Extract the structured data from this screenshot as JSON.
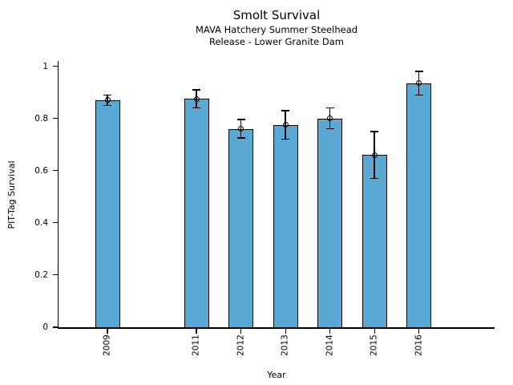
{
  "chart_data": {
    "type": "bar",
    "title": "Smolt Survival",
    "subtitle_lines": [
      "MAVA Hatchery Summer Steelhead",
      "Release - Lower Granite Dam"
    ],
    "xlabel": "Year",
    "ylabel": "PIT-Tag Survival",
    "categories": [
      "2009",
      "2011",
      "2012",
      "2013",
      "2014",
      "2015",
      "2016"
    ],
    "values": [
      0.87,
      0.875,
      0.76,
      0.775,
      0.8,
      0.66,
      0.935
    ],
    "error_bars": [
      0.02,
      0.035,
      0.035,
      0.055,
      0.04,
      0.09,
      0.045
    ],
    "x_positions": [
      2009,
      2011,
      2012,
      2013,
      2014,
      2015,
      2016
    ],
    "xlim": [
      2007.9,
      2017.7
    ],
    "ylim": [
      0,
      1.02
    ],
    "yticks": [
      0,
      0.2,
      0.4,
      0.6,
      0.8,
      1
    ],
    "ytick_labels": [
      "0",
      "0.2",
      "0.4",
      "0.6",
      "0.8",
      "1"
    ],
    "bar_width_years": 0.56,
    "bar_color": "#5aa9d4",
    "bar_edge_color": "#000000",
    "error_color": "#000000",
    "marker": "open-circle",
    "xtick_rotation_deg": 90,
    "grid": false,
    "legend": null
  }
}
